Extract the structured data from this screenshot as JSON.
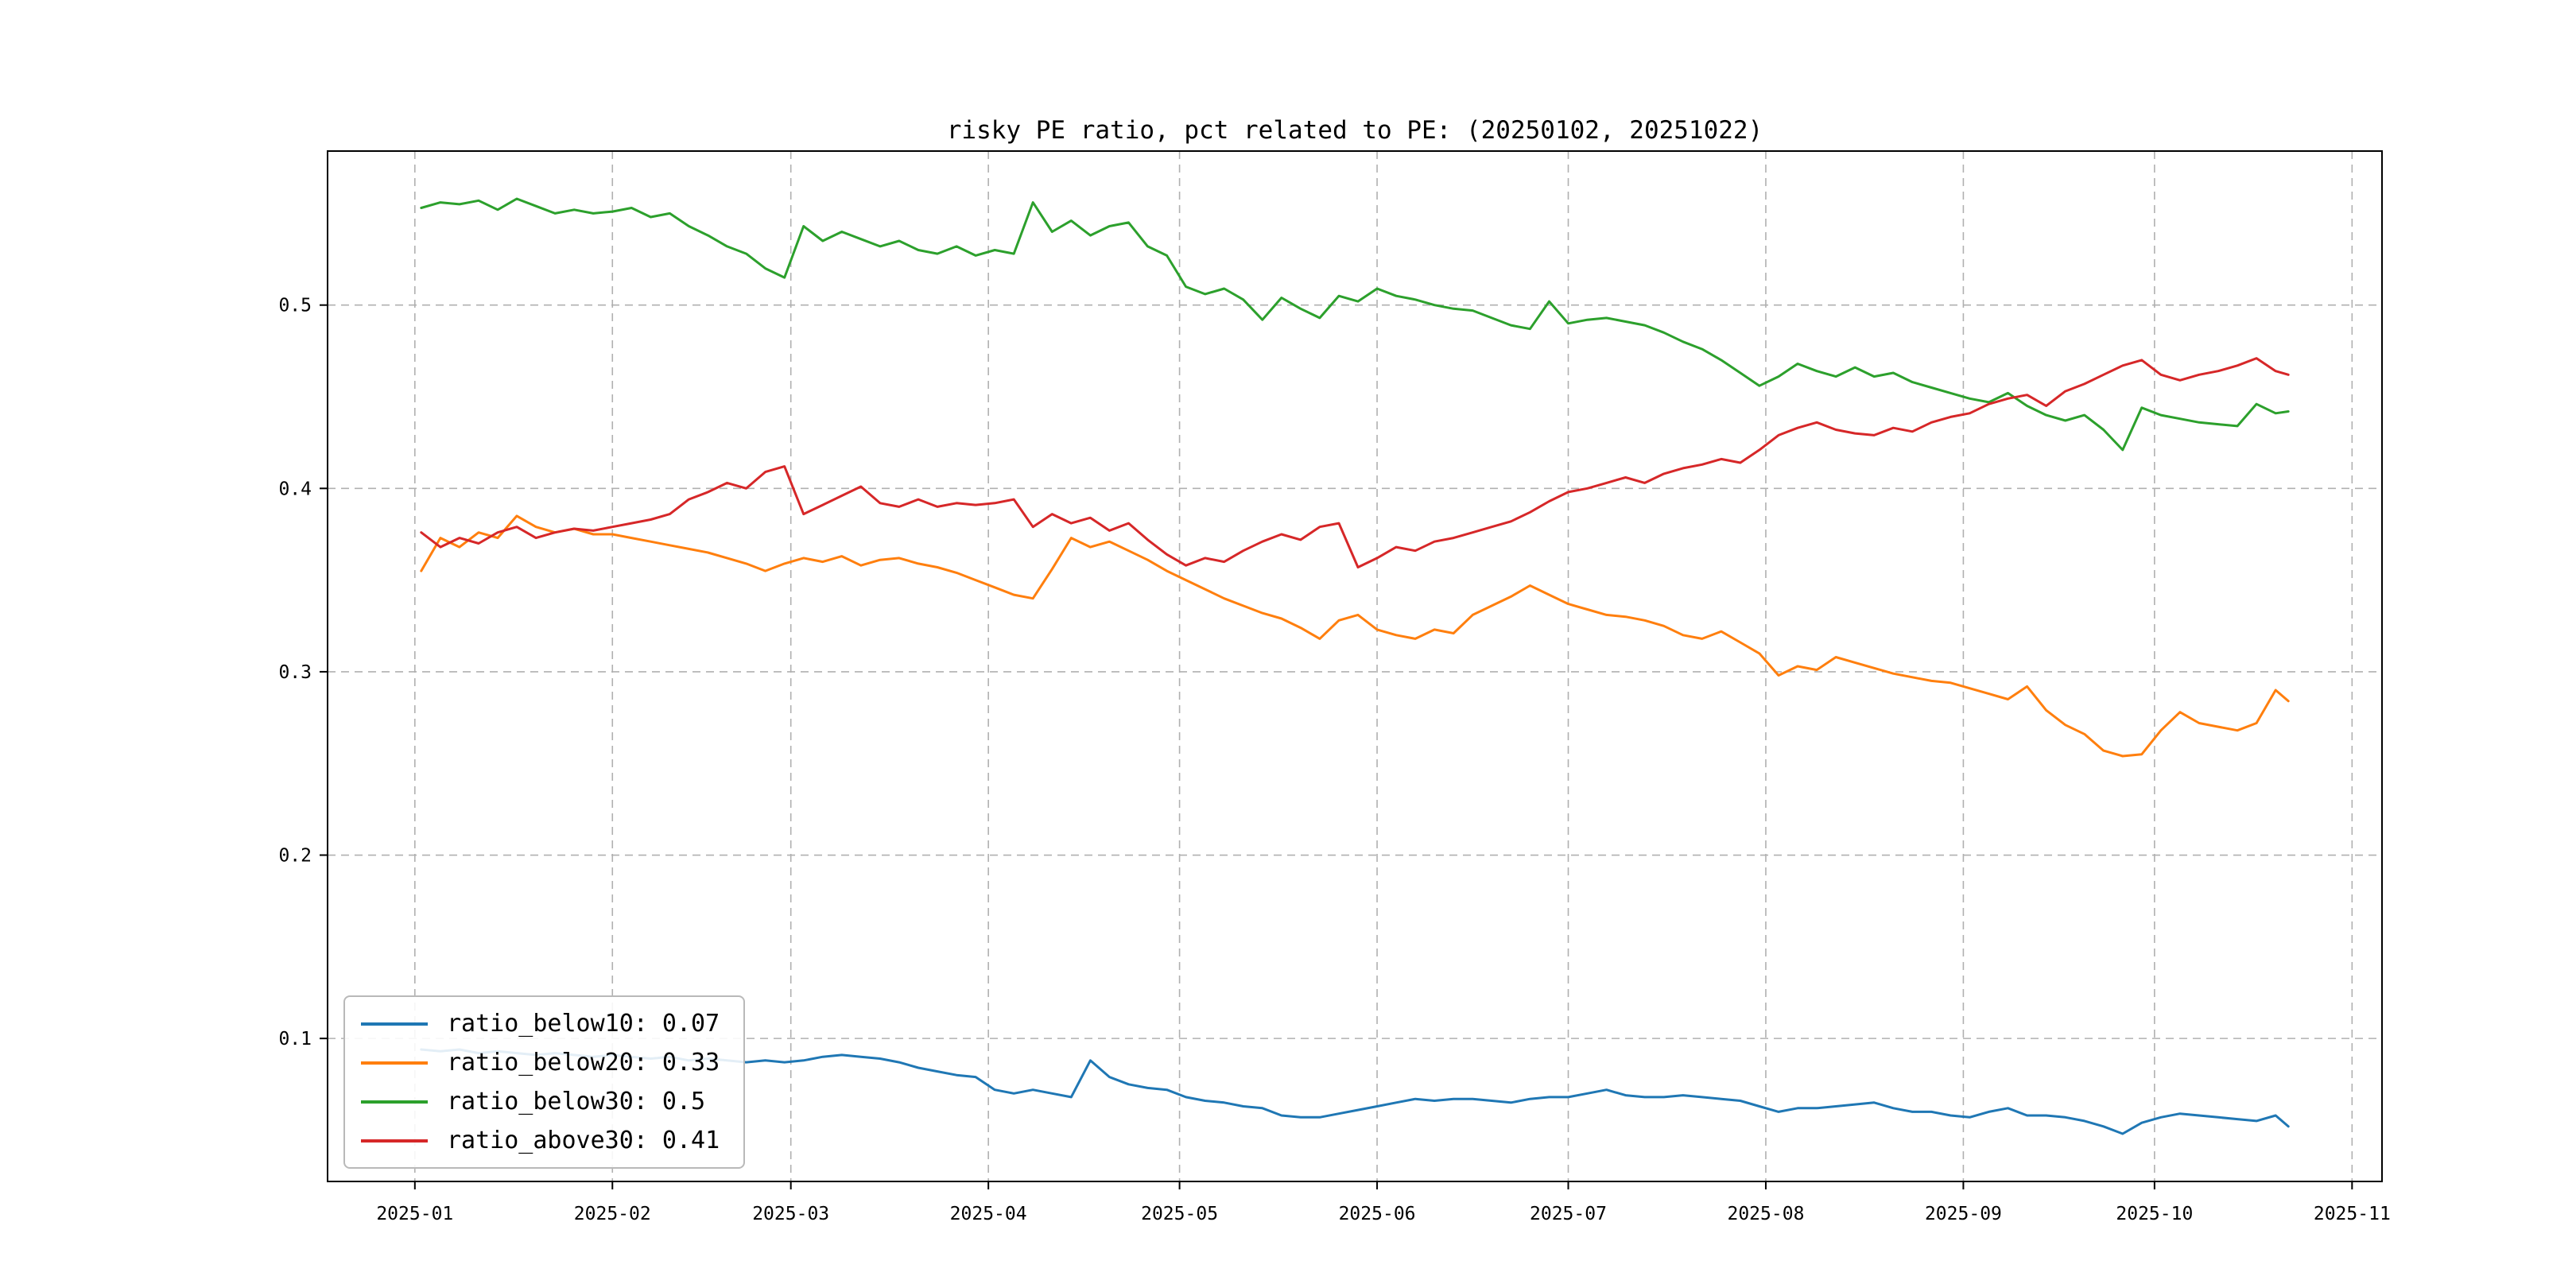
{
  "title": "risky PE ratio, pct related to PE: (20250102, 20251022)",
  "chart_data": {
    "type": "line",
    "title": "risky PE ratio, pct related to PE: (20250102, 20251022)",
    "xlabel": "",
    "ylabel": "",
    "grid": true,
    "legend_position": "lower left",
    "xlim": [
      -13.7,
      308.7
    ],
    "ylim": [
      0.022,
      0.584
    ],
    "x_unit": "days since 2025-01-01",
    "x_tick_positions": [
      0,
      31,
      59,
      90,
      120,
      151,
      181,
      212,
      243,
      273,
      304
    ],
    "x_tick_labels": [
      "2025-01",
      "2025-02",
      "2025-03",
      "2025-04",
      "2025-05",
      "2025-06",
      "2025-07",
      "2025-08",
      "2025-09",
      "2025-10",
      "2025-11"
    ],
    "y_ticks": [
      0.1,
      0.2,
      0.3,
      0.4,
      0.5
    ],
    "y_tick_labels": [
      "0.1",
      "0.2",
      "0.3",
      "0.4",
      "0.5"
    ],
    "x": [
      1,
      4,
      7,
      10,
      13,
      16,
      19,
      22,
      25,
      28,
      31,
      34,
      37,
      40,
      43,
      46,
      49,
      52,
      55,
      58,
      61,
      64,
      67,
      70,
      73,
      76,
      79,
      82,
      85,
      88,
      91,
      94,
      97,
      100,
      103,
      106,
      109,
      112,
      115,
      118,
      121,
      124,
      127,
      130,
      133,
      136,
      139,
      142,
      145,
      148,
      151,
      154,
      157,
      160,
      163,
      166,
      169,
      172,
      175,
      178,
      181,
      184,
      187,
      190,
      193,
      196,
      199,
      202,
      205,
      208,
      211,
      214,
      217,
      220,
      223,
      226,
      229,
      232,
      235,
      238,
      241,
      244,
      247,
      250,
      253,
      256,
      259,
      262,
      265,
      268,
      271,
      274,
      277,
      280,
      283,
      286,
      289,
      292,
      294
    ],
    "series": [
      {
        "name": "ratio_below10",
        "legend_label": "ratio_below10: 0.07",
        "color": "#1f77b4",
        "values": [
          0.094,
          0.093,
          0.094,
          0.092,
          0.093,
          0.092,
          0.091,
          0.092,
          0.091,
          0.09,
          0.091,
          0.09,
          0.089,
          0.09,
          0.088,
          0.089,
          0.088,
          0.087,
          0.088,
          0.087,
          0.088,
          0.09,
          0.091,
          0.09,
          0.089,
          0.087,
          0.084,
          0.082,
          0.08,
          0.079,
          0.072,
          0.07,
          0.072,
          0.07,
          0.068,
          0.088,
          0.079,
          0.075,
          0.073,
          0.072,
          0.068,
          0.066,
          0.065,
          0.063,
          0.062,
          0.058,
          0.057,
          0.057,
          0.059,
          0.061,
          0.063,
          0.065,
          0.067,
          0.066,
          0.067,
          0.067,
          0.066,
          0.065,
          0.067,
          0.068,
          0.068,
          0.07,
          0.072,
          0.069,
          0.068,
          0.068,
          0.069,
          0.068,
          0.067,
          0.066,
          0.063,
          0.06,
          0.062,
          0.062,
          0.063,
          0.064,
          0.065,
          0.062,
          0.06,
          0.06,
          0.058,
          0.057,
          0.06,
          0.062,
          0.058,
          0.058,
          0.057,
          0.055,
          0.052,
          0.048,
          0.054,
          0.057,
          0.059,
          0.058,
          0.057,
          0.056,
          0.055,
          0.058,
          0.052
        ]
      },
      {
        "name": "ratio_below20",
        "legend_label": "ratio_below20: 0.33",
        "color": "#ff7f0e",
        "values": [
          0.355,
          0.373,
          0.368,
          0.376,
          0.373,
          0.385,
          0.379,
          0.376,
          0.378,
          0.375,
          0.375,
          0.373,
          0.371,
          0.369,
          0.367,
          0.365,
          0.362,
          0.359,
          0.355,
          0.359,
          0.362,
          0.36,
          0.363,
          0.358,
          0.361,
          0.362,
          0.359,
          0.357,
          0.354,
          0.35,
          0.346,
          0.342,
          0.34,
          0.356,
          0.373,
          0.368,
          0.371,
          0.366,
          0.361,
          0.355,
          0.35,
          0.345,
          0.34,
          0.336,
          0.332,
          0.329,
          0.324,
          0.318,
          0.328,
          0.331,
          0.323,
          0.32,
          0.318,
          0.323,
          0.321,
          0.331,
          0.336,
          0.341,
          0.347,
          0.342,
          0.337,
          0.334,
          0.331,
          0.33,
          0.328,
          0.325,
          0.32,
          0.318,
          0.322,
          0.316,
          0.31,
          0.298,
          0.303,
          0.301,
          0.308,
          0.305,
          0.302,
          0.299,
          0.297,
          0.295,
          0.294,
          0.291,
          0.288,
          0.285,
          0.292,
          0.279,
          0.271,
          0.266,
          0.257,
          0.254,
          0.255,
          0.268,
          0.278,
          0.272,
          0.27,
          0.268,
          0.272,
          0.29,
          0.284
        ]
      },
      {
        "name": "ratio_below30",
        "legend_label": "ratio_below30: 0.5",
        "color": "#2ca02c",
        "values": [
          0.553,
          0.556,
          0.555,
          0.557,
          0.552,
          0.558,
          0.554,
          0.55,
          0.552,
          0.55,
          0.551,
          0.553,
          0.548,
          0.55,
          0.543,
          0.538,
          0.532,
          0.528,
          0.52,
          0.515,
          0.543,
          0.535,
          0.54,
          0.536,
          0.532,
          0.535,
          0.53,
          0.528,
          0.532,
          0.527,
          0.53,
          0.528,
          0.556,
          0.54,
          0.546,
          0.538,
          0.543,
          0.545,
          0.532,
          0.527,
          0.51,
          0.506,
          0.509,
          0.503,
          0.492,
          0.504,
          0.498,
          0.493,
          0.505,
          0.502,
          0.509,
          0.505,
          0.503,
          0.5,
          0.498,
          0.497,
          0.493,
          0.489,
          0.487,
          0.502,
          0.49,
          0.492,
          0.493,
          0.491,
          0.489,
          0.485,
          0.48,
          0.476,
          0.47,
          0.463,
          0.456,
          0.461,
          0.468,
          0.464,
          0.461,
          0.466,
          0.461,
          0.463,
          0.458,
          0.455,
          0.452,
          0.449,
          0.447,
          0.452,
          0.445,
          0.44,
          0.437,
          0.44,
          0.432,
          0.421,
          0.444,
          0.44,
          0.438,
          0.436,
          0.435,
          0.434,
          0.446,
          0.441,
          0.442
        ]
      },
      {
        "name": "ratio_above30",
        "legend_label": "ratio_above30: 0.41",
        "color": "#d62728",
        "values": [
          0.376,
          0.368,
          0.373,
          0.37,
          0.376,
          0.379,
          0.373,
          0.376,
          0.378,
          0.377,
          0.379,
          0.381,
          0.383,
          0.386,
          0.394,
          0.398,
          0.403,
          0.4,
          0.409,
          0.412,
          0.386,
          0.391,
          0.396,
          0.401,
          0.392,
          0.39,
          0.394,
          0.39,
          0.392,
          0.391,
          0.392,
          0.394,
          0.379,
          0.386,
          0.381,
          0.384,
          0.377,
          0.381,
          0.372,
          0.364,
          0.358,
          0.362,
          0.36,
          0.366,
          0.371,
          0.375,
          0.372,
          0.379,
          0.381,
          0.357,
          0.362,
          0.368,
          0.366,
          0.371,
          0.373,
          0.376,
          0.379,
          0.382,
          0.387,
          0.393,
          0.398,
          0.4,
          0.403,
          0.406,
          0.403,
          0.408,
          0.411,
          0.413,
          0.416,
          0.414,
          0.421,
          0.429,
          0.433,
          0.436,
          0.432,
          0.43,
          0.429,
          0.433,
          0.431,
          0.436,
          0.439,
          0.441,
          0.446,
          0.449,
          0.451,
          0.445,
          0.453,
          0.457,
          0.462,
          0.467,
          0.47,
          0.462,
          0.459,
          0.462,
          0.464,
          0.467,
          0.471,
          0.464,
          0.462
        ]
      }
    ],
    "style": {
      "grid_color": "#b0b0b0",
      "axis_color": "#000000",
      "background": "#ffffff"
    }
  }
}
